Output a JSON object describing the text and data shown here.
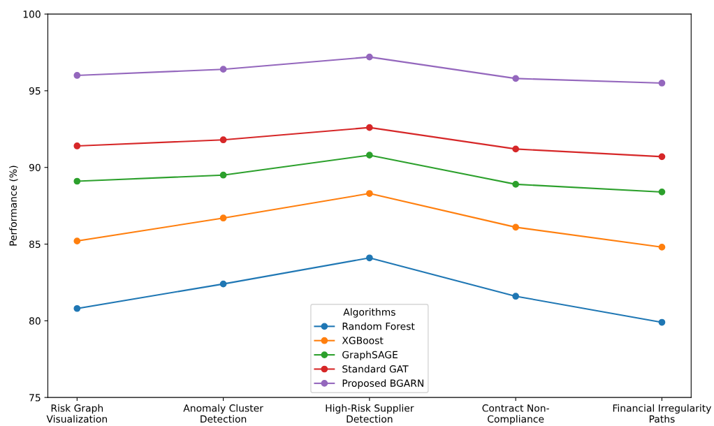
{
  "chart_data": {
    "type": "line",
    "ylabel": "Performance (%)",
    "legend_title": "Algorithms",
    "legend": "bottom",
    "marker": "circle",
    "line_style": "solid",
    "grid": false,
    "categories": [
      "Risk Graph\nVisualization",
      "Anomaly Cluster\nDetection",
      "High-Risk Supplier\nDetection",
      "Contract Non-\nCompliance",
      "Financial Irregularity\nPaths"
    ],
    "ylim": [
      75,
      100
    ],
    "yticks": [
      75,
      80,
      85,
      90,
      95,
      100
    ],
    "series": [
      {
        "name": "Random Forest",
        "color": "#1f77b4",
        "values": [
          80.8,
          82.4,
          84.1,
          81.6,
          79.9
        ]
      },
      {
        "name": "XGBoost",
        "color": "#ff7f0e",
        "values": [
          85.2,
          86.7,
          88.3,
          86.1,
          84.8
        ]
      },
      {
        "name": "GraphSAGE",
        "color": "#2ca02c",
        "values": [
          89.1,
          89.5,
          90.8,
          88.9,
          88.4
        ]
      },
      {
        "name": "Standard GAT",
        "color": "#d62728",
        "values": [
          91.4,
          91.8,
          92.6,
          91.2,
          90.7
        ]
      },
      {
        "name": "Proposed BGARN",
        "color": "#9467bd",
        "values": [
          96.0,
          96.4,
          97.2,
          95.8,
          95.5
        ]
      }
    ]
  }
}
